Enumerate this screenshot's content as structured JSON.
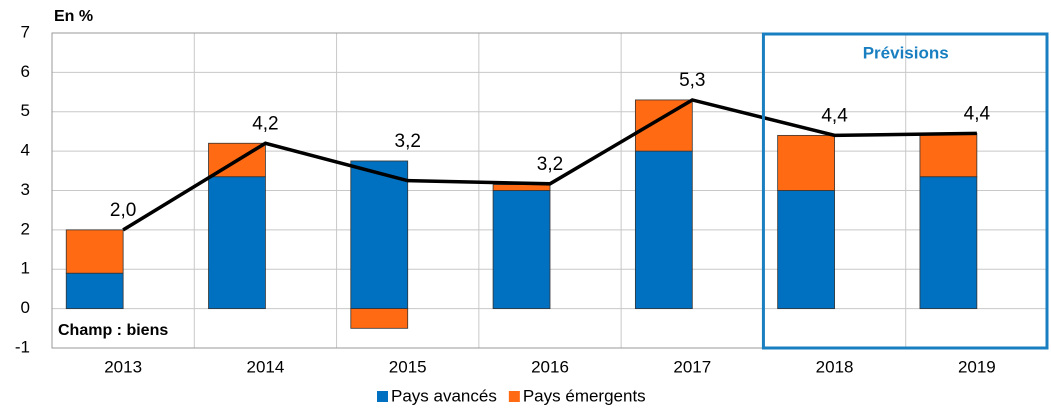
{
  "chart_data": {
    "type": "bar",
    "stacked": true,
    "categories": [
      "2013",
      "2014",
      "2015",
      "2016",
      "2017",
      "2018",
      "2019"
    ],
    "series": [
      {
        "name": "Pays avancés",
        "color": "#0070c0",
        "values": [
          0.9,
          3.35,
          3.75,
          3.0,
          4.0,
          3.0,
          3.35
        ]
      },
      {
        "name": "Pays émergents",
        "color": "#ff6a13",
        "values": [
          1.1,
          0.85,
          -0.5,
          0.15,
          1.3,
          1.4,
          1.1
        ]
      }
    ],
    "line": {
      "color": "#000000",
      "values": [
        2.0,
        4.2,
        3.25,
        3.17,
        5.3,
        4.4,
        4.45
      ],
      "value_labels": [
        "2,0",
        "4,2",
        "3,2",
        "3,2",
        "5,3",
        "4,4",
        "4,4"
      ]
    },
    "ylim": [
      -1,
      7
    ],
    "yticks": [
      -1,
      0,
      1,
      2,
      3,
      4,
      5,
      6,
      7
    ],
    "grid": true,
    "annotations": {
      "unit": "En %",
      "scope": "Champ : biens",
      "forecast": "Prévisions"
    },
    "legend": "bottom"
  }
}
